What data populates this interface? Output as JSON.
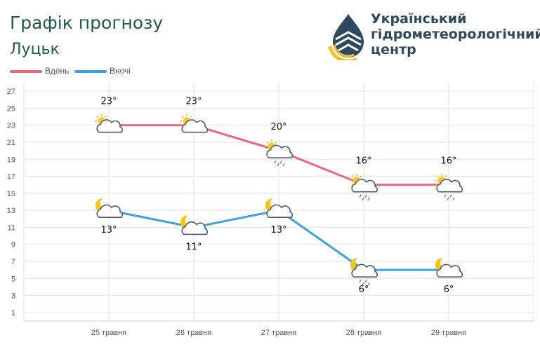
{
  "header": {
    "title": "Графік прогнозу",
    "city": "Луцьк",
    "org_lines": [
      "Український",
      "гідрометеорологічний",
      "центр"
    ]
  },
  "colors": {
    "day": "#e8677f",
    "night": "#3ea0dc",
    "title": "#1f5a46",
    "grid": "#e3e3e3"
  },
  "chart_data": {
    "type": "line",
    "categories": [
      "25 травня",
      "26 травня",
      "27 травня",
      "28 травня",
      "29 травня"
    ],
    "ylim": [
      1,
      27
    ],
    "yticks": [
      1,
      3,
      5,
      7,
      9,
      11,
      13,
      15,
      17,
      19,
      21,
      23,
      25,
      27
    ],
    "grid": true,
    "legend_placement": "top-left",
    "series": [
      {
        "name": "Вдень",
        "values": [
          23,
          23,
          20,
          16,
          16
        ],
        "labels": [
          "23°",
          "23°",
          "20°",
          "16°",
          "16°"
        ],
        "icons": [
          "sun-cloud-icon",
          "sun-cloud-icon",
          "sun-cloud-rain-icon",
          "sun-cloud-rain-icon",
          "sun-cloud-rain-icon"
        ]
      },
      {
        "name": "Вночі",
        "values": [
          13,
          11,
          13,
          6,
          6
        ],
        "labels": [
          "13°",
          "11°",
          "13°",
          "6°",
          "6°"
        ],
        "icons": [
          "moon-cloud-icon",
          "moon-cloud-icon",
          "moon-cloud-icon",
          "moon-cloud-rain-icon",
          "moon-cloud-icon"
        ]
      }
    ]
  }
}
